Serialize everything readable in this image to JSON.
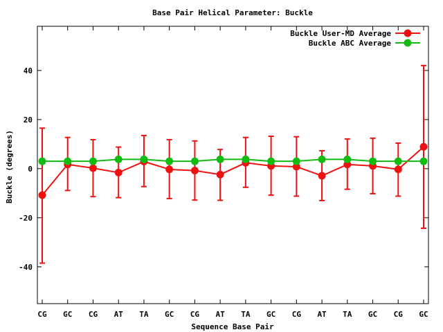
{
  "chart_data": {
    "type": "line",
    "title": "Base Pair Helical Parameter: Buckle",
    "xlabel": "Sequence Base Pair",
    "ylabel": "Buckle (degrees)",
    "ylim": [
      -55,
      58
    ],
    "yticks": [
      -40,
      -20,
      0,
      20,
      40
    ],
    "categories": [
      "CG",
      "GC",
      "CG",
      "AT",
      "TA",
      "GC",
      "CG",
      "AT",
      "TA",
      "GC",
      "CG",
      "AT",
      "TA",
      "GC",
      "CG",
      "GC"
    ],
    "grid": false,
    "legend_position": "top-right",
    "series": [
      {
        "name": "Buckle User-MD Average",
        "color": "#ee1111",
        "values": [
          -10.8,
          1.7,
          0.2,
          -1.6,
          2.9,
          -0.3,
          -0.8,
          -2.4,
          2.4,
          1.1,
          0.8,
          -2.9,
          1.7,
          1.1,
          -0.3,
          8.9
        ],
        "err_low": [
          -38.5,
          -8.9,
          -11.4,
          -11.8,
          -7.3,
          -12.2,
          -12.8,
          -12.9,
          -7.6,
          -10.8,
          -11.2,
          -13.0,
          -8.4,
          -10.2,
          -11.2,
          -24.3
        ],
        "err_high": [
          16.5,
          12.7,
          11.8,
          8.8,
          13.5,
          11.8,
          11.3,
          7.8,
          12.7,
          13.2,
          13.0,
          7.3,
          12.1,
          12.4,
          10.4,
          42.0
        ]
      },
      {
        "name": "Buckle ABC Average",
        "color": "#11bb11",
        "values": [
          3.0,
          3.0,
          3.0,
          3.8,
          3.8,
          3.0,
          3.0,
          3.8,
          3.8,
          3.0,
          3.0,
          3.8,
          3.8,
          3.0,
          3.0,
          3.0
        ]
      }
    ]
  }
}
